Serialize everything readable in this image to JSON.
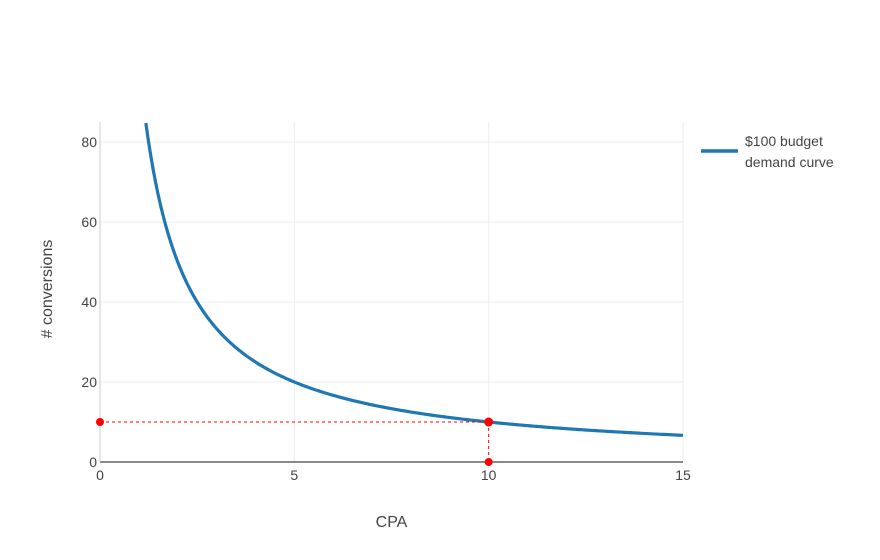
{
  "chart_data": {
    "type": "line",
    "title": "",
    "xlabel": "CPA",
    "ylabel": "# conversions",
    "xlim": [
      0,
      15
    ],
    "ylim": [
      0,
      85
    ],
    "x_ticks": [
      0,
      5,
      10,
      15
    ],
    "y_ticks": [
      0,
      20,
      40,
      60,
      80
    ],
    "grid": true,
    "legend_position": "top-right",
    "series": [
      {
        "name": "$100 budget\n demand curve",
        "legend_lines": [
          "$100 budget",
          " demand curve"
        ],
        "color": "#1f77b4",
        "formula": "y = 100 / x",
        "x": [
          1.18,
          1.25,
          1.5,
          1.75,
          2,
          2.5,
          3,
          3.5,
          4,
          5,
          6,
          7,
          8,
          9,
          10,
          11,
          12,
          13,
          14,
          15
        ],
        "y": [
          84.7,
          80,
          66.7,
          57.1,
          50,
          40,
          33.3,
          28.6,
          25,
          20,
          16.7,
          14.3,
          12.5,
          11.1,
          10,
          9.09,
          8.33,
          7.69,
          7.14,
          6.67
        ]
      }
    ],
    "annotations": {
      "highlight_point": {
        "x": 10,
        "y": 10,
        "color": "#ff0000"
      },
      "guide_lines": {
        "style": "dashed",
        "color": "#ff0000"
      }
    }
  }
}
